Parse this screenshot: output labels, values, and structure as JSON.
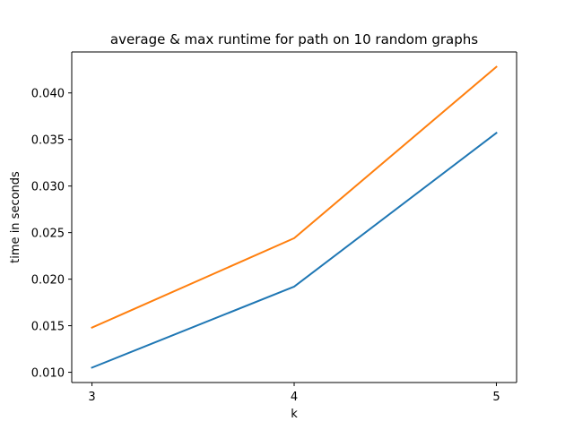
{
  "chart_data": {
    "type": "line",
    "title": "average & max runtime for path on 10 random graphs",
    "xlabel": "k",
    "ylabel": "time in seconds",
    "x": [
      3,
      4,
      5
    ],
    "xticks": [
      3,
      4,
      5
    ],
    "xlim": [
      2.9,
      5.1
    ],
    "yticks": [
      0.01,
      0.015,
      0.02,
      0.025,
      0.03,
      0.035,
      0.04
    ],
    "ytick_labels": [
      "0.010",
      "0.015",
      "0.020",
      "0.025",
      "0.030",
      "0.035",
      "0.040"
    ],
    "ylim": [
      0.0089,
      0.0444
    ],
    "series": [
      {
        "color": "#1f77b4",
        "values": [
          0.0105,
          0.0192,
          0.0357
        ]
      },
      {
        "color": "#ff7f0e",
        "values": [
          0.0148,
          0.0244,
          0.0428
        ]
      }
    ],
    "grid": false,
    "legend": "none"
  }
}
